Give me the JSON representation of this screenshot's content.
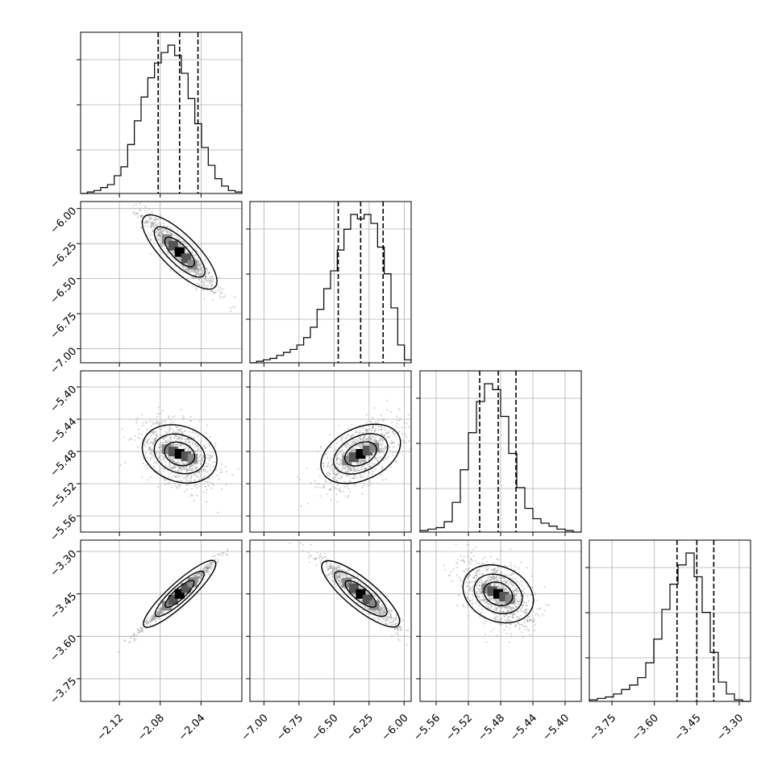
{
  "chart_data": {
    "type": "corner",
    "params": [
      {
        "ticks": [
          "−2.12",
          "−2.08",
          "−2.04"
        ],
        "tick_values": [
          -2.12,
          -2.08,
          -2.04
        ],
        "range": [
          -2.158,
          -2.0
        ],
        "quantiles": [
          -2.082,
          -2.061,
          -2.043
        ]
      },
      {
        "ticks": [
          "−7.00",
          "−6.75",
          "−6.50",
          "−6.25",
          "−6.00"
        ],
        "tick_values": [
          -7.0,
          -6.75,
          -6.5,
          -6.25,
          -6.0
        ],
        "range": [
          -7.1,
          -5.95
        ],
        "quantiles": [
          -6.47,
          -6.31,
          -6.15
        ]
      },
      {
        "ticks": [
          "−5.56",
          "−5.52",
          "−5.48",
          "−5.44",
          "−5.40"
        ],
        "tick_values": [
          -5.56,
          -5.52,
          -5.48,
          -5.44,
          -5.4
        ],
        "range": [
          -5.58,
          -5.38
        ],
        "quantiles": [
          -5.506,
          -5.483,
          -5.461
        ]
      },
      {
        "ticks": [
          "−3.75",
          "−3.60",
          "−3.45",
          "−3.30"
        ],
        "tick_values": [
          -3.75,
          -3.6,
          -3.45,
          -3.3
        ],
        "range": [
          -3.83,
          -3.26
        ],
        "quantiles": [
          -3.52,
          -3.45,
          -3.39
        ]
      }
    ],
    "histograms": [
      [
        0,
        0.01,
        0.02,
        0.04,
        0.06,
        0.12,
        0.18,
        0.33,
        0.49,
        0.65,
        0.78,
        0.88,
        0.95,
        1.0,
        0.93,
        0.81,
        0.64,
        0.47,
        0.31,
        0.19,
        0.1,
        0.05,
        0.02,
        0.01
      ],
      [
        0.0,
        0.01,
        0.02,
        0.03,
        0.05,
        0.07,
        0.09,
        0.12,
        0.17,
        0.24,
        0.36,
        0.5,
        0.62,
        0.76,
        0.9,
        1.0,
        0.97,
        1.0,
        0.94,
        0.78,
        0.6,
        0.37,
        0.12,
        0.02
      ],
      [
        0.01,
        0.02,
        0.03,
        0.07,
        0.2,
        0.42,
        0.67,
        0.88,
        1.0,
        0.96,
        0.78,
        0.53,
        0.3,
        0.16,
        0.09,
        0.06,
        0.04,
        0.02,
        0.01,
        0.0
      ],
      [
        0.01,
        0.02,
        0.03,
        0.05,
        0.08,
        0.11,
        0.16,
        0.26,
        0.42,
        0.62,
        0.79,
        0.92,
        1.0,
        0.84,
        0.6,
        0.33,
        0.13,
        0.05,
        0.01,
        0.0
      ]
    ],
    "pairs": [
      {
        "x": 0,
        "y": 1,
        "center": [
          -2.061,
          -6.31
        ],
        "spread": [
          0.018,
          0.14
        ],
        "rho": -0.93
      },
      {
        "x": 0,
        "y": 2,
        "center": [
          -2.061,
          -5.483
        ],
        "spread": [
          0.018,
          0.021
        ],
        "rho": -0.4
      },
      {
        "x": 1,
        "y": 2,
        "center": [
          -6.31,
          -5.483
        ],
        "spread": [
          0.14,
          0.021
        ],
        "rho": 0.55
      },
      {
        "x": 0,
        "y": 3,
        "center": [
          -2.061,
          -3.45
        ],
        "spread": [
          0.018,
          0.06
        ],
        "rho": 0.99
      },
      {
        "x": 1,
        "y": 3,
        "center": [
          -6.31,
          -3.45
        ],
        "spread": [
          0.14,
          0.06
        ],
        "rho": -0.95
      },
      {
        "x": 2,
        "y": 3,
        "center": [
          -5.483,
          -3.45
        ],
        "spread": [
          0.021,
          0.06
        ],
        "rho": -0.45
      }
    ],
    "grid": true
  }
}
